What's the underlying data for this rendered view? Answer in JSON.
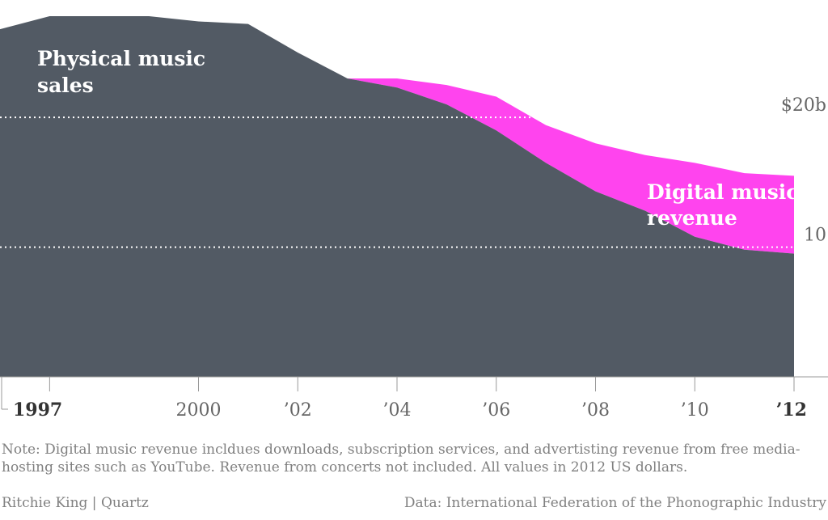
{
  "chart_data": {
    "type": "area",
    "stacked": true,
    "x": [
      1996,
      1997,
      1998,
      1999,
      2000,
      2001,
      2002,
      2003,
      2004,
      2005,
      2006,
      2007,
      2008,
      2009,
      2010,
      2011,
      2012
    ],
    "series": [
      {
        "name": "Physical music sales",
        "color": "#525a64",
        "values": [
          26.8,
          27.8,
          27.8,
          27.8,
          27.4,
          27.2,
          25.0,
          23.0,
          22.3,
          21.0,
          19.0,
          16.5,
          14.3,
          12.8,
          10.8,
          9.8,
          9.5
        ]
      },
      {
        "name": "Digital music revenue",
        "color": "#ff44ee",
        "values": [
          0,
          0,
          0,
          0,
          0,
          0,
          0,
          0.0,
          0.7,
          1.5,
          2.6,
          2.9,
          3.7,
          4.3,
          5.7,
          5.9,
          6.0
        ]
      }
    ],
    "ylim": [
      0,
      28.8
    ],
    "yticks": [
      {
        "value": 20,
        "label": "$20b"
      },
      {
        "value": 10,
        "label": "10"
      }
    ],
    "xticks": [
      {
        "value": 1997,
        "label": "1997",
        "bold": true
      },
      {
        "value": 2000,
        "label": "2000",
        "bold": false
      },
      {
        "value": 2002,
        "label": "’02",
        "bold": false
      },
      {
        "value": 2004,
        "label": "’04",
        "bold": false
      },
      {
        "value": 2006,
        "label": "’06",
        "bold": false
      },
      {
        "value": 2008,
        "label": "’08",
        "bold": false
      },
      {
        "value": 2010,
        "label": "’10",
        "bold": false
      },
      {
        "value": 2012,
        "label": "’12",
        "bold": true
      }
    ],
    "labels": {
      "physical": [
        "Physical music",
        "sales"
      ],
      "digital": [
        "Digital music",
        "revenue"
      ]
    },
    "grid": "dotted"
  },
  "note": "Note: Digital music revenue incldues downloads, subscription services, and advertisting revenue from free media-hosting sites such as YouTube. Revenue from concerts not included. All values in 2012 US dollars.",
  "footer": {
    "author": "Ritchie King | Quartz",
    "source": "Data: International Federation of the Phonographic Industry"
  }
}
